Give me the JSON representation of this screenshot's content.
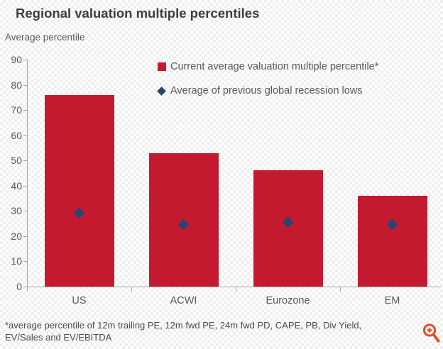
{
  "header": {
    "title": "Regional valuation multiple percentiles",
    "axis_title": "Average percentile"
  },
  "legend": {
    "items": [
      {
        "label": "Current average valuation multiple percentile*",
        "marker": "square",
        "color": "#c41a2f"
      },
      {
        "label": "Average of previous global recession lows",
        "marker": "diamond",
        "color": "#24476f"
      }
    ]
  },
  "footnote": {
    "lines": [
      "*average percentile of 12m trailing PE, 12m fwd PE, 24m fwd PD, CAPE, PB, Div Yield,",
      "EV/Sales and EV/EBITDA"
    ]
  },
  "icons": {
    "zoom_icon": "magnifier-plus",
    "zoom_icon_color": "#e8491f"
  },
  "colors": {
    "bar": "#c41a2f",
    "diamond": "#24476f",
    "axis": "#a6a6a6",
    "text": "#595959",
    "title": "#3d3d3d"
  },
  "chart_data": {
    "type": "bar",
    "title": "Regional valuation multiple percentiles",
    "xlabel": "",
    "ylabel": "Average percentile",
    "categories": [
      "US",
      "ACWI",
      "Eurozone",
      "EM"
    ],
    "series": [
      {
        "name": "Current average valuation multiple percentile*",
        "type": "bar",
        "color": "#c41a2f",
        "values": [
          76,
          53,
          46,
          36
        ]
      },
      {
        "name": "Average of previous global recession lows",
        "type": "scatter",
        "marker": "diamond",
        "color": "#24476f",
        "values": [
          29,
          24.5,
          25.5,
          24.5
        ]
      }
    ],
    "ylim": [
      0,
      90
    ],
    "yticks": [
      0,
      10,
      20,
      30,
      40,
      50,
      60,
      70,
      80,
      90
    ],
    "grid": false,
    "legend_position": "top-right-inside"
  }
}
